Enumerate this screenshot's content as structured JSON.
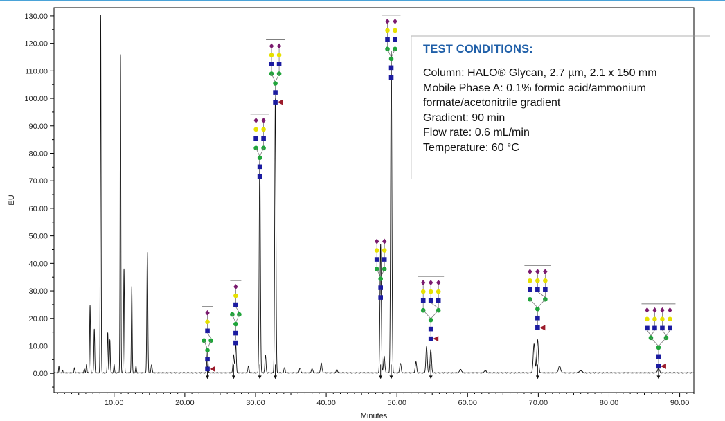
{
  "colors": {
    "trace": "#111111",
    "axis": "#000000",
    "accent_line": "#4aa3d8",
    "title_blue": "#1f5fa8",
    "glycan_blue": "#1b1ba0",
    "glycan_green": "#1fa53a",
    "glycan_yellow": "#e6e000",
    "glycan_purple": "#7a1a6e",
    "glycan_red": "#9b1a2a"
  },
  "test_conditions": {
    "title": "TEST CONDITIONS:",
    "rows": [
      {
        "key": "Column:",
        "value": " HALO® Glycan, 2.7 µm, 2.1 x 150 mm"
      },
      {
        "key": "Mobile Phase A:",
        "value": " 0.1% formic acid/ammonium"
      },
      {
        "key": "",
        "value": "formate/acetonitrile gradient"
      },
      {
        "key": "Gradient:",
        "value": " 90 min"
      },
      {
        "key": "Flow rate:",
        "value": " 0.6 mL/min"
      },
      {
        "key": "Temperature:",
        "value": " 60 °C"
      }
    ]
  },
  "chart_data": {
    "type": "line",
    "xlabel": "Minutes",
    "ylabel": "EU",
    "xlim": [
      1.5,
      92
    ],
    "ylim": [
      -7,
      133
    ],
    "x_ticks": [
      10,
      20,
      30,
      40,
      50,
      60,
      70,
      80,
      90
    ],
    "x_tick_labels": [
      "10.00",
      "20.00",
      "30.00",
      "40.00",
      "50.00",
      "60.00",
      "70.00",
      "80.00",
      "90.00"
    ],
    "y_ticks": [
      0,
      10,
      20,
      30,
      40,
      50,
      60,
      70,
      80,
      90,
      100,
      110,
      120,
      130
    ],
    "y_tick_labels": [
      "0.00",
      "10.00",
      "20.00",
      "30.00",
      "40.00",
      "50.00",
      "60.00",
      "70.00",
      "80.00",
      "90.00",
      "100.00",
      "110.00",
      "120.00",
      "130.00"
    ],
    "grid": false,
    "baseline": 0.2,
    "peaks": [
      {
        "x": 2.2,
        "y": 2.4,
        "w": 0.05
      },
      {
        "x": 2.7,
        "y": 1.0,
        "w": 0.05
      },
      {
        "x": 4.4,
        "y": 1.8,
        "w": 0.06
      },
      {
        "x": 5.8,
        "y": 1.5,
        "w": 0.06
      },
      {
        "x": 6.1,
        "y": 3.0,
        "w": 0.06
      },
      {
        "x": 6.6,
        "y": 24.5,
        "w": 0.06
      },
      {
        "x": 7.2,
        "y": 16.0,
        "w": 0.06
      },
      {
        "x": 8.1,
        "y": 130.0,
        "w": 0.055
      },
      {
        "x": 9.1,
        "y": 14.5,
        "w": 0.06
      },
      {
        "x": 9.4,
        "y": 12.0,
        "w": 0.06
      },
      {
        "x": 10.0,
        "y": 3.0,
        "w": 0.06
      },
      {
        "x": 10.9,
        "y": 116.0,
        "w": 0.055
      },
      {
        "x": 11.4,
        "y": 38.0,
        "w": 0.06
      },
      {
        "x": 12.5,
        "y": 31.5,
        "w": 0.06
      },
      {
        "x": 13.1,
        "y": 2.5,
        "w": 0.06
      },
      {
        "x": 14.7,
        "y": 44.0,
        "w": 0.07
      },
      {
        "x": 15.3,
        "y": 3.0,
        "w": 0.08
      },
      {
        "x": 23.2,
        "y": 8.0,
        "w": 0.08
      },
      {
        "x": 26.9,
        "y": 6.5,
        "w": 0.09
      },
      {
        "x": 27.2,
        "y": 10.5,
        "w": 0.08
      },
      {
        "x": 29.0,
        "y": 2.5,
        "w": 0.08
      },
      {
        "x": 30.6,
        "y": 79.0,
        "w": 0.085
      },
      {
        "x": 31.4,
        "y": 6.5,
        "w": 0.08
      },
      {
        "x": 32.8,
        "y": 100.0,
        "w": 0.085
      },
      {
        "x": 34.1,
        "y": 2.0,
        "w": 0.08
      },
      {
        "x": 36.3,
        "y": 1.8,
        "w": 0.1
      },
      {
        "x": 38.0,
        "y": 1.5,
        "w": 0.1
      },
      {
        "x": 39.3,
        "y": 3.5,
        "w": 0.1
      },
      {
        "x": 41.5,
        "y": 1.2,
        "w": 0.1
      },
      {
        "x": 47.7,
        "y": 47.0,
        "w": 0.09
      },
      {
        "x": 48.2,
        "y": 6.0,
        "w": 0.1
      },
      {
        "x": 49.2,
        "y": 117.0,
        "w": 0.09
      },
      {
        "x": 50.5,
        "y": 3.5,
        "w": 0.1
      },
      {
        "x": 52.7,
        "y": 4.0,
        "w": 0.1
      },
      {
        "x": 54.2,
        "y": 9.5,
        "w": 0.1
      },
      {
        "x": 54.8,
        "y": 8.5,
        "w": 0.1
      },
      {
        "x": 59.0,
        "y": 1.2,
        "w": 0.15
      },
      {
        "x": 62.5,
        "y": 0.8,
        "w": 0.15
      },
      {
        "x": 69.4,
        "y": 10.5,
        "w": 0.12
      },
      {
        "x": 69.9,
        "y": 12.0,
        "w": 0.12
      },
      {
        "x": 73.0,
        "y": 2.5,
        "w": 0.15
      },
      {
        "x": 76.0,
        "y": 0.8,
        "w": 0.2
      },
      {
        "x": 87.0,
        "y": 1.5,
        "w": 0.15
      }
    ],
    "peak_markers": [
      23.2,
      26.9,
      30.6,
      32.8,
      47.7,
      49.2,
      54.8,
      69.9,
      87.0
    ]
  }
}
